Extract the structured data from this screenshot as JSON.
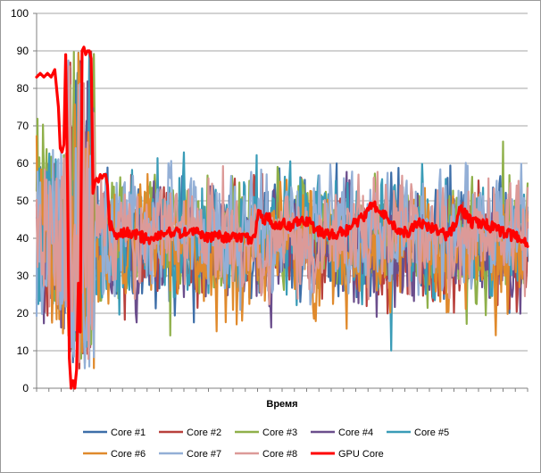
{
  "chart_data": {
    "type": "line",
    "title": "",
    "xlabel": "Время",
    "ylabel": "",
    "ylim": [
      0,
      100
    ],
    "yticks": [
      0,
      10,
      20,
      30,
      40,
      50,
      60,
      70,
      80,
      90,
      100
    ],
    "grid": "horizontal",
    "legend_position": "bottom",
    "x": {
      "start": 0,
      "end": 540,
      "step": 1
    },
    "series": [
      {
        "name": "Core #1",
        "color": "#3d6ea8",
        "width": 2.2,
        "profile": "core",
        "seed": 11,
        "base": 40,
        "amp": 15,
        "startLevel": 45
      },
      {
        "name": "Core #2",
        "color": "#b8403c",
        "width": 2.2,
        "profile": "core",
        "seed": 23,
        "base": 38,
        "amp": 14,
        "startLevel": 40
      },
      {
        "name": "Core #3",
        "color": "#8fb04a",
        "width": 2.2,
        "profile": "core",
        "seed": 37,
        "base": 41,
        "amp": 15,
        "startLevel": 52
      },
      {
        "name": "Core #4",
        "color": "#6b4e8c",
        "width": 2.2,
        "profile": "core",
        "seed": 41,
        "base": 37,
        "amp": 14,
        "startLevel": 35
      },
      {
        "name": "Core #5",
        "color": "#3a9cb7",
        "width": 2.2,
        "profile": "core",
        "seed": 53,
        "base": 41,
        "amp": 15,
        "startLevel": 40
      },
      {
        "name": "Core #6",
        "color": "#e08a2c",
        "width": 2.2,
        "profile": "core",
        "seed": 67,
        "base": 37,
        "amp": 15,
        "startLevel": 48
      },
      {
        "name": "Core #7",
        "color": "#93afd6",
        "width": 2.2,
        "profile": "core",
        "seed": 79,
        "base": 42,
        "amp": 15,
        "startLevel": 38
      },
      {
        "name": "Core #8",
        "color": "#dc9a98",
        "width": 2.2,
        "profile": "core",
        "seed": 83,
        "base": 41,
        "amp": 14,
        "startLevel": 42
      },
      {
        "name": "GPU Core",
        "color": "#ff0000",
        "width": 3.2,
        "profile": "gpu",
        "keypoints": [
          [
            0,
            83
          ],
          [
            4,
            84
          ],
          [
            8,
            83
          ],
          [
            12,
            84
          ],
          [
            16,
            83
          ],
          [
            20,
            85
          ],
          [
            24,
            75
          ],
          [
            26,
            64
          ],
          [
            28,
            63
          ],
          [
            30,
            65
          ],
          [
            32,
            89
          ],
          [
            34,
            55
          ],
          [
            36,
            8
          ],
          [
            38,
            0
          ],
          [
            40,
            2
          ],
          [
            42,
            0
          ],
          [
            44,
            5
          ],
          [
            46,
            28
          ],
          [
            48,
            15
          ],
          [
            50,
            90
          ],
          [
            52,
            91
          ],
          [
            54,
            89
          ],
          [
            56,
            90
          ],
          [
            58,
            90
          ],
          [
            60,
            88
          ],
          [
            62,
            52
          ],
          [
            64,
            55
          ],
          [
            66,
            56
          ],
          [
            68,
            55
          ],
          [
            70,
            57
          ],
          [
            72,
            56
          ],
          [
            74,
            57
          ],
          [
            76,
            57
          ],
          [
            78,
            54
          ],
          [
            80,
            44
          ],
          [
            84,
            42
          ],
          [
            90,
            41
          ],
          [
            100,
            42
          ],
          [
            110,
            41
          ],
          [
            120,
            40
          ],
          [
            130,
            40
          ],
          [
            140,
            41
          ],
          [
            150,
            42
          ],
          [
            160,
            41
          ],
          [
            170,
            42
          ],
          [
            180,
            41
          ],
          [
            190,
            40
          ],
          [
            200,
            41
          ],
          [
            210,
            40
          ],
          [
            220,
            40
          ],
          [
            230,
            40
          ],
          [
            240,
            40
          ],
          [
            245,
            48
          ],
          [
            250,
            45
          ],
          [
            255,
            46
          ],
          [
            260,
            43
          ],
          [
            270,
            44
          ],
          [
            280,
            43
          ],
          [
            290,
            45
          ],
          [
            300,
            44
          ],
          [
            310,
            42
          ],
          [
            320,
            41
          ],
          [
            330,
            41
          ],
          [
            340,
            42
          ],
          [
            350,
            44
          ],
          [
            360,
            46
          ],
          [
            365,
            48
          ],
          [
            370,
            49
          ],
          [
            380,
            47
          ],
          [
            390,
            44
          ],
          [
            400,
            41
          ],
          [
            410,
            42
          ],
          [
            420,
            44
          ],
          [
            430,
            43
          ],
          [
            440,
            42
          ],
          [
            450,
            41
          ],
          [
            460,
            43
          ],
          [
            465,
            49
          ],
          [
            470,
            47
          ],
          [
            475,
            45
          ],
          [
            480,
            44
          ],
          [
            490,
            44
          ],
          [
            500,
            43
          ],
          [
            510,
            42
          ],
          [
            520,
            41
          ],
          [
            530,
            40
          ],
          [
            536,
            39
          ],
          [
            540,
            39
          ]
        ]
      }
    ]
  }
}
